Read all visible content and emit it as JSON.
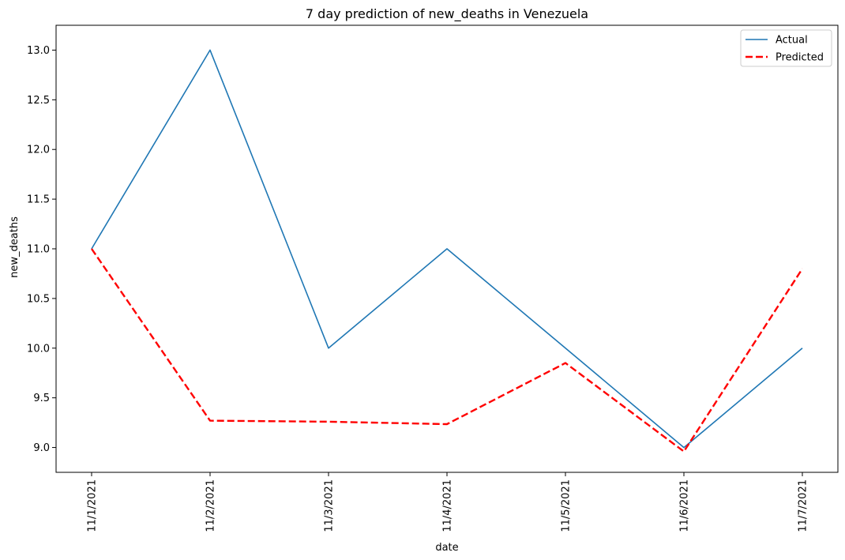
{
  "chart_data": {
    "type": "line",
    "title": "7 day prediction of new_deaths in Venezuela",
    "xlabel": "date",
    "ylabel": "new_deaths",
    "categories": [
      "11/1/2021",
      "11/2/2021",
      "11/3/2021",
      "11/4/2021",
      "11/5/2021",
      "11/6/2021",
      "11/7/2021"
    ],
    "series": [
      {
        "name": "Actual",
        "values": [
          11,
          13,
          10,
          11,
          10,
          9,
          10
        ],
        "color": "#1f77b4",
        "style": "solid"
      },
      {
        "name": "Predicted",
        "values": [
          11.0,
          9.27,
          9.26,
          9.235,
          9.85,
          8.96,
          10.8
        ],
        "color": "#ff0000",
        "style": "dashed"
      }
    ],
    "ylim": [
      8.75,
      13.25
    ],
    "yticks": [
      9.0,
      9.5,
      10.0,
      10.5,
      11.0,
      11.5,
      12.0,
      12.5,
      13.0
    ],
    "ytick_labels": [
      "9.0",
      "9.5",
      "10.0",
      "10.5",
      "11.0",
      "11.5",
      "12.0",
      "12.5",
      "13.0"
    ],
    "grid": false,
    "legend_position": "top-right"
  }
}
